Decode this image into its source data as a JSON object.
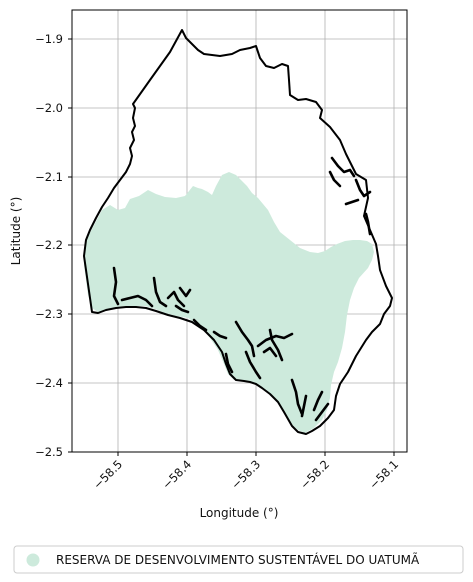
{
  "map": {
    "x_axis": {
      "label": "Longitude (°)",
      "ticks": [
        "−58.5",
        "−58.4",
        "−58.3",
        "−58.2",
        "−58.1"
      ],
      "tick_values": [
        -58.5,
        -58.4,
        -58.3,
        -58.2,
        -58.1
      ],
      "range": [
        -58.562,
        -58.092
      ]
    },
    "y_axis": {
      "label": "Latitude (°)",
      "ticks": [
        "−1.9",
        "−2.0",
        "−2.1",
        "−2.2",
        "−2.3",
        "−2.4",
        "−2.5"
      ],
      "tick_values": [
        -1.9,
        -2.0,
        -2.1,
        -2.2,
        -2.3,
        -2.4,
        -2.5
      ],
      "range": [
        -2.5,
        -1.857
      ]
    },
    "grid": true,
    "layers": [
      {
        "name": "RESERVA DE DESENVOLVIMENTO SUSTENTÁVEL DO UATUMÃ",
        "fill_color": "#cdeadc",
        "kind": "area"
      },
      {
        "kind": "boundary",
        "stroke_color": "#000000"
      }
    ],
    "legend": {
      "placement": "bottom-center",
      "items": [
        {
          "label": "RESERVA DE DESENVOLVIMENTO SUSTENTÁVEL DO UATUMÃ",
          "color": "#cdeadc",
          "marker": "circle"
        }
      ]
    }
  }
}
